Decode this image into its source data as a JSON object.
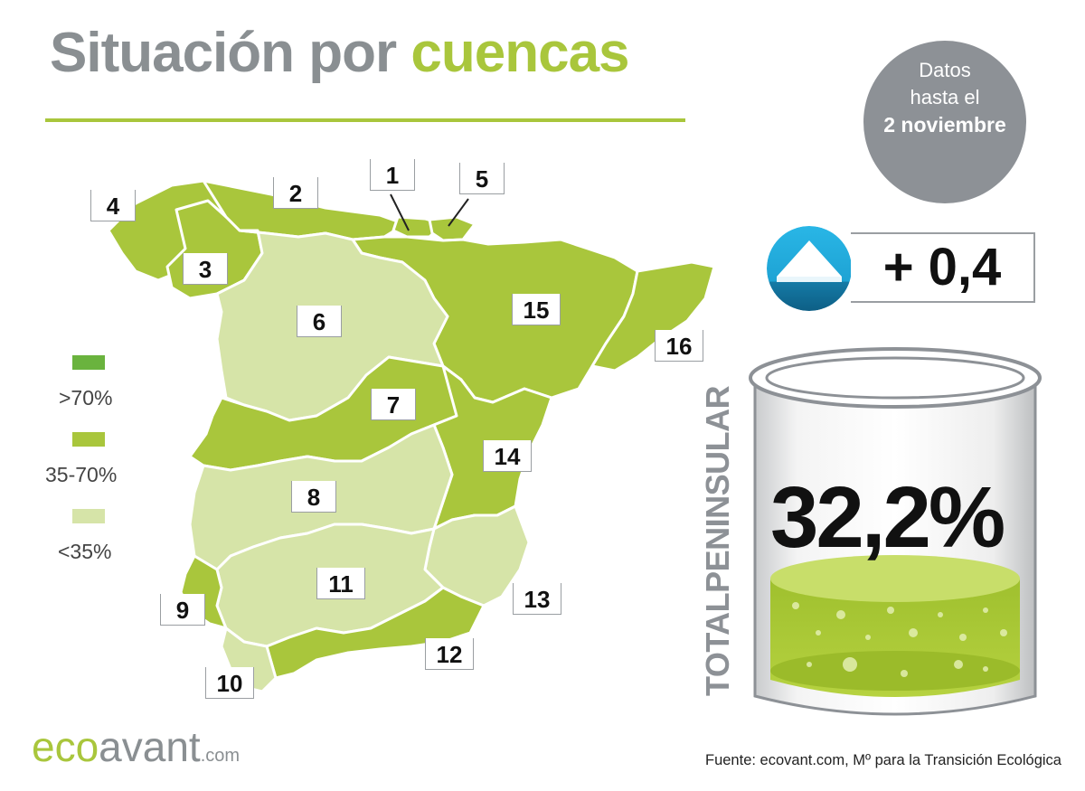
{
  "header": {
    "title_part1": "Situación por",
    "title_part2": "cuencas"
  },
  "date_badge": {
    "line1": "Datos",
    "line2": "hasta el",
    "line3": "2 noviembre"
  },
  "legend": {
    "items": [
      {
        "label": ">70%",
        "color": "#6ab33e"
      },
      {
        "label": "35-70%",
        "color": "#a9c63c"
      },
      {
        "label": "<35%",
        "color": "#d6e4a8"
      }
    ]
  },
  "basins": [
    {
      "number": "1",
      "category": "35-70%"
    },
    {
      "number": "2",
      "category": "35-70%"
    },
    {
      "number": "3",
      "category": "35-70%"
    },
    {
      "number": "4",
      "category": "35-70%"
    },
    {
      "number": "5",
      "category": "35-70%"
    },
    {
      "number": "6",
      "category": "<35%"
    },
    {
      "number": "7",
      "category": "35-70%"
    },
    {
      "number": "8",
      "category": "<35%"
    },
    {
      "number": "9",
      "category": "35-70%"
    },
    {
      "number": "10",
      "category": "<35%"
    },
    {
      "number": "11",
      "category": "<35%"
    },
    {
      "number": "12",
      "category": "35-70%"
    },
    {
      "number": "13",
      "category": "<35%"
    },
    {
      "number": "14",
      "category": "35-70%"
    },
    {
      "number": "15",
      "category": "35-70%"
    },
    {
      "number": "16",
      "category": "35-70%"
    }
  ],
  "weekly_change": {
    "value": "+ 0,4",
    "icon": "up-arrow-icon",
    "color": "#29b6e6"
  },
  "total": {
    "label": "TOTALPENINSULAR",
    "value": "32,2%",
    "fill_fraction": 0.322
  },
  "logo": {
    "eco": "eco",
    "avant": "avant",
    "suffix": ".com"
  },
  "source": "Fuente: ecovant.com, Mº para la Transición Ecológica",
  "colors": {
    "accent_green": "#a9c63c",
    "dark_green": "#6ab33e",
    "light_green": "#d6e4a8",
    "gray": "#8a8f92"
  }
}
